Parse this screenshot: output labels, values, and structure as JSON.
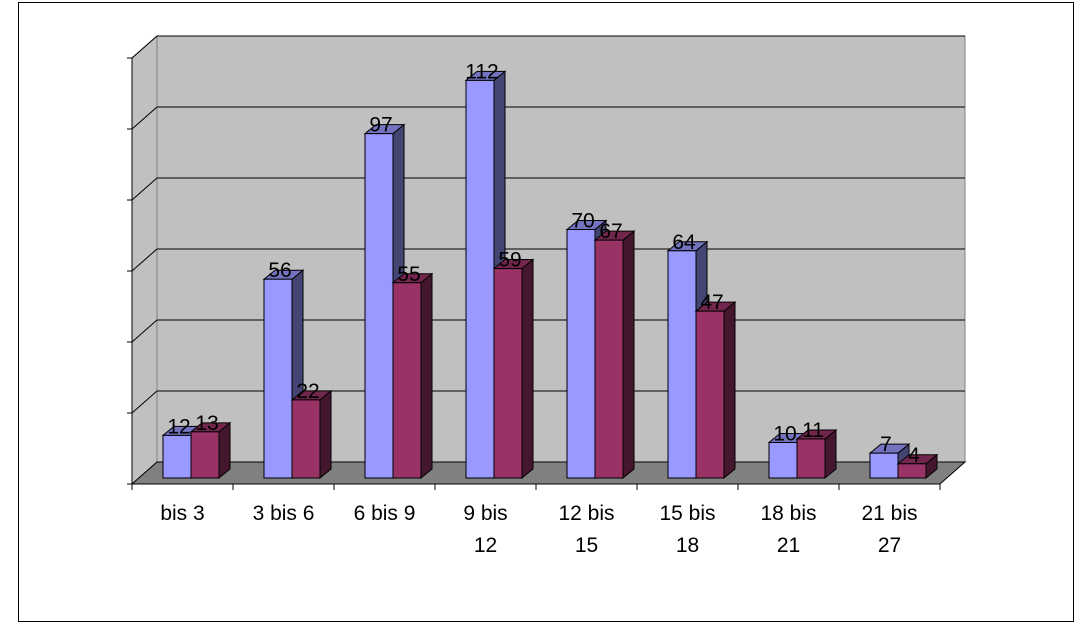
{
  "chart_data": {
    "type": "bar",
    "style": "3d-clustered-column",
    "categories": [
      [
        "bis 3"
      ],
      [
        "3 bis 6"
      ],
      [
        "6 bis 9"
      ],
      [
        "9 bis",
        "12"
      ],
      [
        "12 bis",
        "15"
      ],
      [
        "15 bis",
        "18"
      ],
      [
        "18 bis",
        "21"
      ],
      [
        "21 bis",
        "27"
      ]
    ],
    "series": [
      {
        "values": [
          12,
          56,
          97,
          112,
          70,
          64,
          10,
          7
        ],
        "color": "#9999ff"
      },
      {
        "values": [
          13,
          22,
          55,
          59,
          67,
          47,
          11,
          4
        ],
        "color": "#993366"
      }
    ],
    "ylim": [
      0,
      120
    ],
    "grid": true,
    "legend": "none",
    "plot_wall_color": "#c0c0c0",
    "floor_color": "#808080"
  }
}
